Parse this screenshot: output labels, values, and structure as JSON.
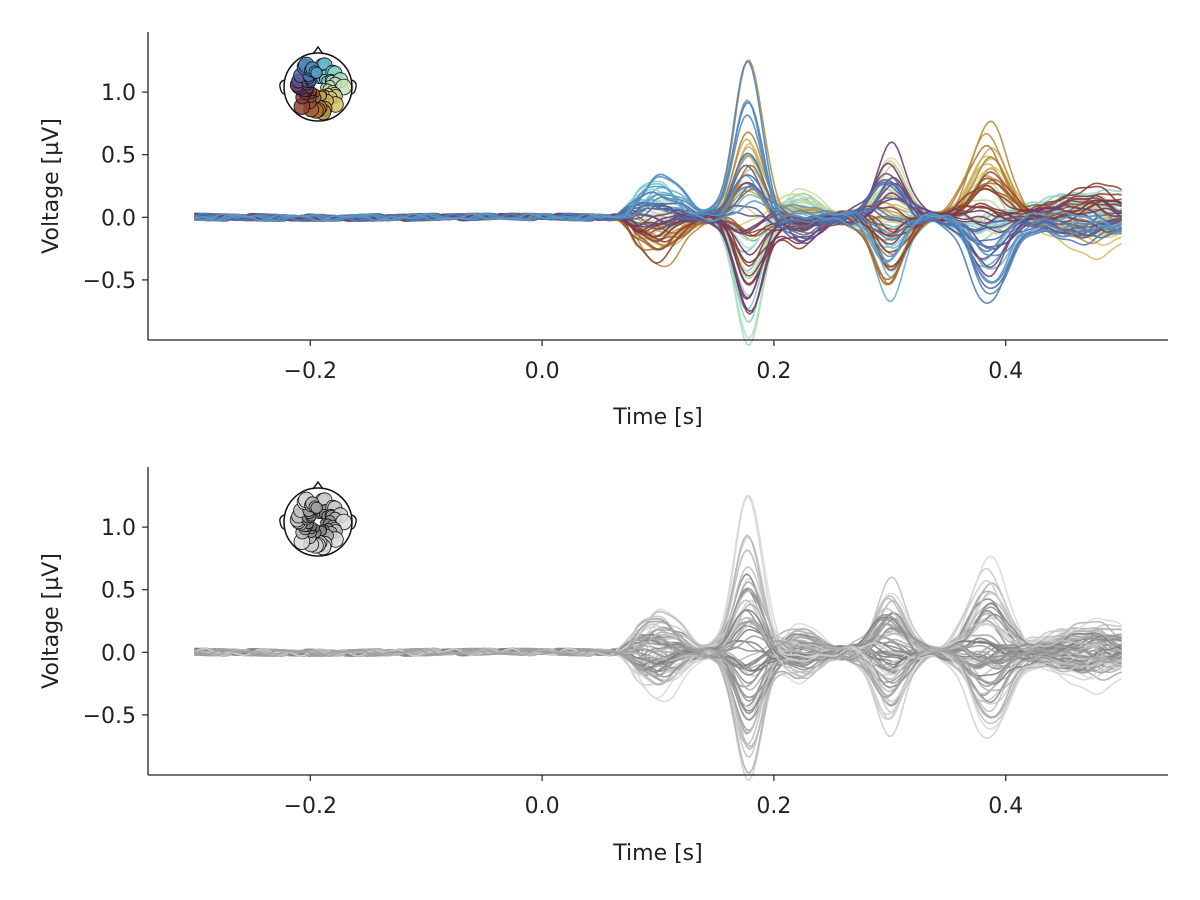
{
  "chart_data": [
    {
      "type": "line",
      "title": "",
      "xlabel": "Time [s]",
      "ylabel": "Voltage [µV]",
      "xlim": [
        -0.34,
        0.54
      ],
      "ylim": [
        -0.98,
        1.48
      ],
      "xticks": [
        -0.2,
        0.0,
        0.2,
        0.4
      ],
      "xtick_labels": [
        "−0.2",
        "0.0",
        "0.2",
        "0.4"
      ],
      "yticks": [
        -0.5,
        0.0,
        0.5,
        1.0
      ],
      "ytick_labels": [
        "−0.5",
        "0.0",
        "0.5",
        "1.0"
      ],
      "n_channels": 64,
      "x_range": [
        -0.3,
        0.5
      ],
      "onset": 0.06,
      "components": [
        {
          "t": 0.1,
          "w": 0.025,
          "amp": 0.3
        },
        {
          "t": 0.178,
          "w": 0.017,
          "amp": 1.05
        },
        {
          "t": 0.225,
          "w": 0.02,
          "amp": -0.25
        },
        {
          "t": 0.3,
          "w": 0.018,
          "amp": 0.55
        },
        {
          "t": 0.385,
          "w": 0.022,
          "amp": 0.65
        },
        {
          "t": 0.47,
          "w": 0.05,
          "amp": 0.22
        }
      ],
      "color_mode": "position",
      "colormap": [
        "#5aa2c9",
        "#7fcfcf",
        "#c8e2b8",
        "#d4c06a",
        "#b07a32",
        "#8a3a2e",
        "#6e3a6e",
        "#4a6fb0"
      ],
      "grid": false,
      "legend": "topomap-inset"
    },
    {
      "type": "line",
      "title": "",
      "xlabel": "Time [s]",
      "ylabel": "Voltage [µV]",
      "xlim": [
        -0.34,
        0.54
      ],
      "ylim": [
        -0.98,
        1.48
      ],
      "xticks": [
        -0.2,
        0.0,
        0.2,
        0.4
      ],
      "xtick_labels": [
        "−0.2",
        "0.0",
        "0.2",
        "0.4"
      ],
      "yticks": [
        -0.5,
        0.0,
        0.5,
        1.0
      ],
      "ytick_labels": [
        "−0.5",
        "0.0",
        "0.5",
        "1.0"
      ],
      "n_channels": 64,
      "x_range": [
        -0.3,
        0.5
      ],
      "onset": 0.06,
      "color_mode": "grayscale",
      "colormap": [
        "#dddddd",
        "#555555"
      ],
      "grid": false,
      "legend": "topomap-inset"
    }
  ]
}
